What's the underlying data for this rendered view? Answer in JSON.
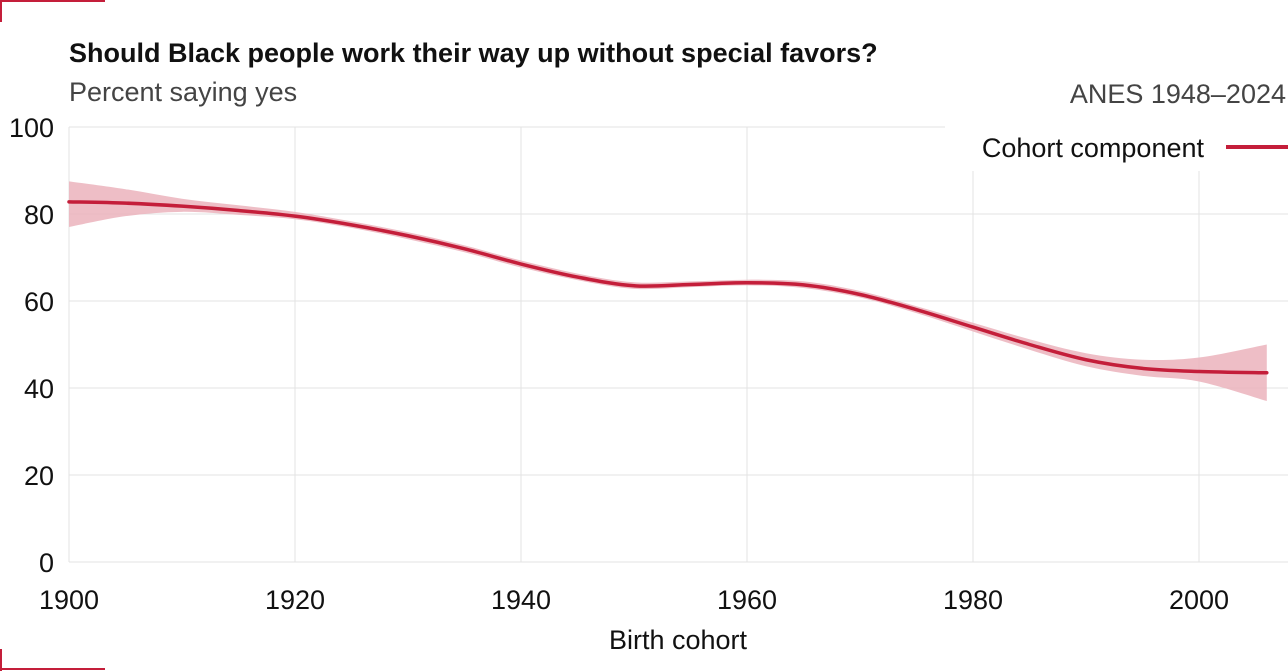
{
  "chart_data": {
    "type": "line",
    "title": "Should Black people work their way up without special favors?",
    "subtitle": "Percent saying yes",
    "source_note": "ANES 1948–2024",
    "xlabel": "Birth cohort",
    "ylabel": "",
    "xlim": [
      1900,
      2006
    ],
    "ylim": [
      0,
      100
    ],
    "x_ticks": [
      1900,
      1920,
      1940,
      1960,
      1980,
      2000
    ],
    "y_ticks": [
      0,
      20,
      40,
      60,
      80,
      100
    ],
    "grid": true,
    "legend": {
      "position": "top-right",
      "entries": [
        "Cohort component"
      ]
    },
    "series": [
      {
        "name": "Cohort component",
        "color": "#c41e3a",
        "band_color": "#ebb3bc",
        "x": [
          1900,
          1905,
          1910,
          1915,
          1920,
          1925,
          1930,
          1935,
          1940,
          1945,
          1950,
          1955,
          1960,
          1965,
          1970,
          1975,
          1980,
          1985,
          1990,
          1995,
          2000,
          2006
        ],
        "y": [
          82.8,
          82.5,
          81.8,
          80.8,
          79.5,
          77.5,
          75.0,
          72.0,
          68.5,
          65.5,
          63.5,
          63.8,
          64.2,
          63.7,
          61.5,
          58.0,
          54.0,
          50.0,
          46.5,
          44.5,
          43.8,
          43.5
        ],
        "lower": [
          77.0,
          79.5,
          80.5,
          79.8,
          78.8,
          76.8,
          74.2,
          71.2,
          67.7,
          64.8,
          62.8,
          63.2,
          63.6,
          63.0,
          60.8,
          57.2,
          53.0,
          48.8,
          45.0,
          42.8,
          41.5,
          37.0
        ],
        "upper": [
          87.5,
          85.7,
          83.5,
          82.0,
          80.5,
          78.3,
          75.8,
          72.8,
          69.3,
          66.3,
          64.3,
          64.5,
          64.9,
          64.5,
          62.3,
          58.8,
          55.0,
          51.2,
          48.0,
          46.5,
          47.0,
          50.0
        ]
      }
    ]
  }
}
